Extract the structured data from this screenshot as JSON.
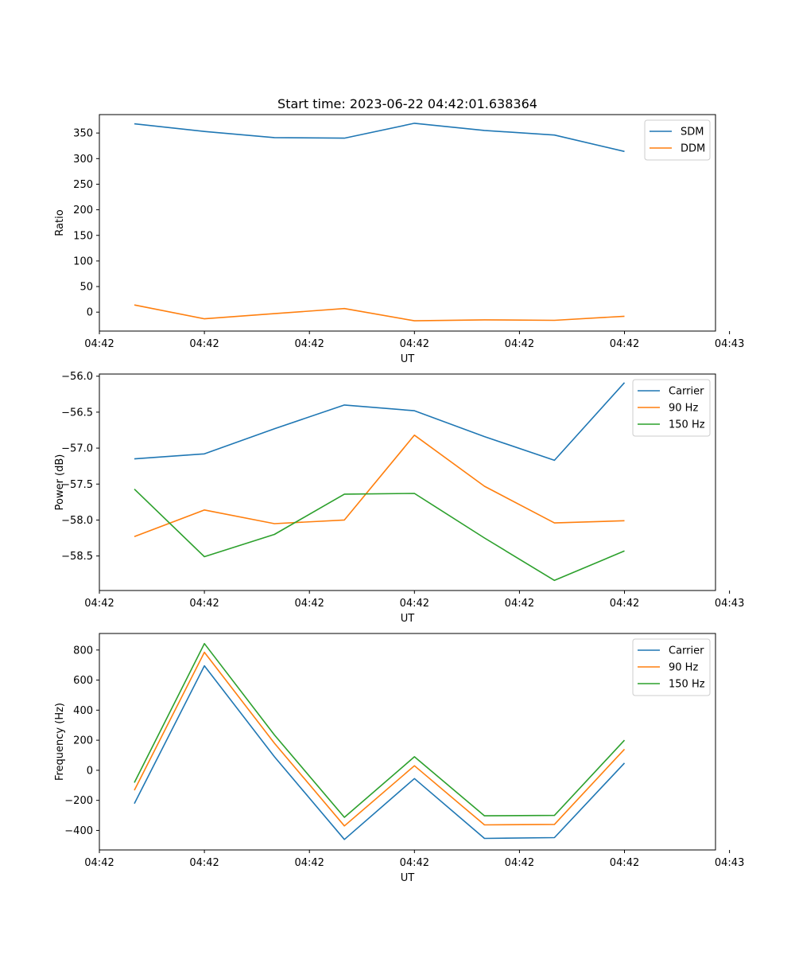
{
  "figure_title": "Start time: 2023-06-22 04:42:01.638364",
  "colors": {
    "C0": "#1f77b4",
    "C1": "#ff7f0e",
    "C2": "#2ca02c"
  },
  "chart_data": [
    {
      "type": "line",
      "title": "Start time: 2023-06-22 04:42:01.638364",
      "xlabel": "UT",
      "ylabel": "Ratio",
      "legend_position": "top-right",
      "grid": false,
      "x": [
        1,
        2,
        3,
        4,
        5,
        6,
        7,
        8
      ],
      "xlim": [
        0.5,
        9.3
      ],
      "xticks": [
        {
          "value": 0.5,
          "label": "04:42"
        },
        {
          "value": 2,
          "label": "04:42"
        },
        {
          "value": 3.5,
          "label": "04:42"
        },
        {
          "value": 5,
          "label": "04:42"
        },
        {
          "value": 6.5,
          "label": "04:42"
        },
        {
          "value": 8,
          "label": "04:42"
        },
        {
          "value": 9.5,
          "label": "04:43"
        }
      ],
      "ylim": [
        -37,
        386
      ],
      "yticks": [
        {
          "value": 0,
          "label": "0"
        },
        {
          "value": 50,
          "label": "50"
        },
        {
          "value": 100,
          "label": "100"
        },
        {
          "value": 150,
          "label": "150"
        },
        {
          "value": 200,
          "label": "200"
        },
        {
          "value": 250,
          "label": "250"
        },
        {
          "value": 300,
          "label": "300"
        },
        {
          "value": 350,
          "label": "350"
        }
      ],
      "series": [
        {
          "name": "SDM",
          "color": "#1f77b4",
          "values": [
            368,
            353,
            341,
            340,
            369,
            355,
            346,
            314
          ]
        },
        {
          "name": "DDM",
          "color": "#ff7f0e",
          "values": [
            14,
            -13,
            -3,
            7,
            -17,
            -15,
            -16,
            -8
          ]
        }
      ]
    },
    {
      "type": "line",
      "xlabel": "UT",
      "ylabel": "Power (dB)",
      "legend_position": "top-right",
      "grid": false,
      "x": [
        1,
        2,
        3,
        4,
        5,
        6,
        7,
        8
      ],
      "xlim": [
        0.5,
        9.3
      ],
      "xticks": [
        {
          "value": 0.5,
          "label": "04:42"
        },
        {
          "value": 2,
          "label": "04:42"
        },
        {
          "value": 3.5,
          "label": "04:42"
        },
        {
          "value": 5,
          "label": "04:42"
        },
        {
          "value": 6.5,
          "label": "04:42"
        },
        {
          "value": 8,
          "label": "04:42"
        },
        {
          "value": 9.5,
          "label": "04:43"
        }
      ],
      "ylim": [
        -58.98,
        -55.97
      ],
      "yticks": [
        {
          "value": -58.5,
          "label": "−58.5"
        },
        {
          "value": -58.0,
          "label": "−58.0"
        },
        {
          "value": -57.5,
          "label": "−57.5"
        },
        {
          "value": -57.0,
          "label": "−57.0"
        },
        {
          "value": -56.5,
          "label": "−56.5"
        },
        {
          "value": -56.0,
          "label": "−56.0"
        }
      ],
      "series": [
        {
          "name": "Carrier",
          "color": "#1f77b4",
          "values": [
            -57.15,
            -57.08,
            -56.73,
            -56.4,
            -56.48,
            -56.84,
            -57.17,
            -56.09
          ]
        },
        {
          "name": "90 Hz",
          "color": "#ff7f0e",
          "values": [
            -58.23,
            -57.86,
            -58.05,
            -58.0,
            -56.82,
            -57.53,
            -58.04,
            -58.01
          ]
        },
        {
          "name": "150 Hz",
          "color": "#2ca02c",
          "values": [
            -57.57,
            -58.51,
            -58.2,
            -57.64,
            -57.63,
            -58.25,
            -58.84,
            -58.43
          ]
        }
      ]
    },
    {
      "type": "line",
      "xlabel": "UT",
      "ylabel": "Frequency (Hz)",
      "legend_position": "top-right",
      "grid": false,
      "x": [
        1,
        2,
        3,
        4,
        5,
        6,
        7,
        8
      ],
      "xlim": [
        0.5,
        9.3
      ],
      "xticks": [
        {
          "value": 0.5,
          "label": "04:42"
        },
        {
          "value": 2,
          "label": "04:42"
        },
        {
          "value": 3.5,
          "label": "04:42"
        },
        {
          "value": 5,
          "label": "04:42"
        },
        {
          "value": 6.5,
          "label": "04:42"
        },
        {
          "value": 8,
          "label": "04:42"
        },
        {
          "value": 9.5,
          "label": "04:43"
        }
      ],
      "ylim": [
        -530,
        910
      ],
      "yticks": [
        {
          "value": -400,
          "label": "−400"
        },
        {
          "value": -200,
          "label": "−200"
        },
        {
          "value": 0,
          "label": "0"
        },
        {
          "value": 200,
          "label": "200"
        },
        {
          "value": 400,
          "label": "400"
        },
        {
          "value": 600,
          "label": "600"
        },
        {
          "value": 800,
          "label": "800"
        }
      ],
      "series": [
        {
          "name": "Carrier",
          "color": "#1f77b4",
          "values": [
            -222,
            695,
            90,
            -460,
            -55,
            -453,
            -448,
            48
          ]
        },
        {
          "name": "90 Hz",
          "color": "#ff7f0e",
          "values": [
            -133,
            785,
            180,
            -370,
            30,
            -363,
            -360,
            140
          ]
        },
        {
          "name": "150 Hz",
          "color": "#2ca02c",
          "values": [
            -82,
            843,
            235,
            -313,
            90,
            -303,
            -300,
            200
          ]
        }
      ]
    }
  ]
}
